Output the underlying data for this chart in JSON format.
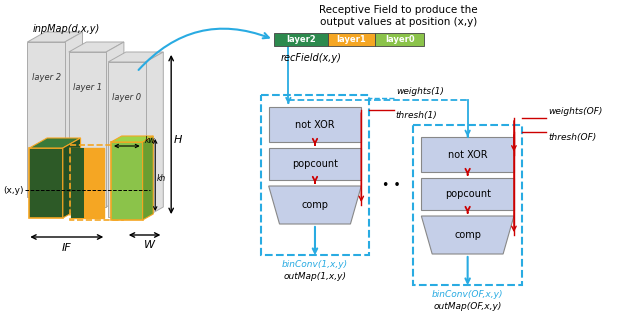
{
  "layer_colors": [
    "#2d8a4e",
    "#f5a623",
    "#8bc34a"
  ],
  "layer_labels": [
    "layer2",
    "layer1",
    "layer0"
  ],
  "box_fill": "#c5cfe8",
  "box_edge_dark": "#666666",
  "dashed_box_color": "#29abe2",
  "arrow_blue": "#29abe2",
  "arrow_red": "#cc0000",
  "text_blue": "#29abe2",
  "bg_color": "#ffffff",
  "plane_color": "#e8e8e8",
  "plane_edge": "#aaaaaa",
  "dark_green": "#2d5a27",
  "yellow_orange": "#f5a623",
  "light_green": "#8bc34a"
}
